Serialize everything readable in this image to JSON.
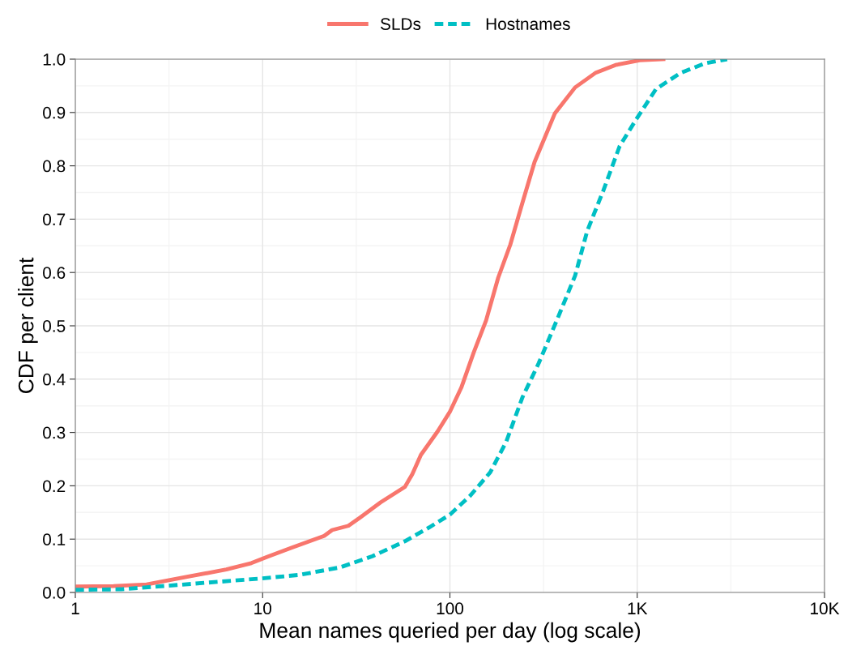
{
  "chart_data": {
    "type": "line",
    "xlabel": "Mean names queried per day (log scale)",
    "ylabel": "CDF per client",
    "log": "x",
    "grid": true,
    "legend": "top",
    "xlim": [
      1,
      10000
    ],
    "xticks": [
      1,
      10,
      100,
      {
        "value": 1000,
        "label": "1K"
      },
      {
        "value": 10000,
        "label": "10K"
      }
    ],
    "ylim": [
      0,
      1
    ],
    "yticks": [
      {
        "value": 0,
        "label": "0.0"
      },
      {
        "value": 0.1,
        "label": "0.1"
      },
      {
        "value": 0.2,
        "label": "0.2"
      },
      {
        "value": 0.3,
        "label": "0.3"
      },
      {
        "value": 0.4,
        "label": "0.4"
      },
      {
        "value": 0.5,
        "label": "0.5"
      },
      {
        "value": 0.6,
        "label": "0.6"
      },
      {
        "value": 0.7,
        "label": "0.7"
      },
      {
        "value": 0.8,
        "label": "0.8"
      },
      {
        "value": 0.9,
        "label": "0.9"
      },
      {
        "value": 1,
        "label": "1.0"
      }
    ],
    "series": [
      {
        "name": "SLDs",
        "color": "#f8766d",
        "line_style": "solid",
        "x": [
          1,
          1.6,
          2.4,
          3.9,
          6.4,
          8.7,
          10.6,
          14.3,
          21.3,
          23.5,
          28.7,
          33.3,
          42.7,
          57.5,
          63,
          70,
          86,
          100,
          115,
          134,
          156,
          181,
          210,
          244,
          283,
          363,
          466,
          597,
          766,
          1030,
          1380
        ],
        "values": [
          0.011,
          0.012,
          0.015,
          0.029,
          0.043,
          0.055,
          0.067,
          0.084,
          0.106,
          0.117,
          0.125,
          0.141,
          0.169,
          0.198,
          0.222,
          0.258,
          0.302,
          0.339,
          0.384,
          0.45,
          0.51,
          0.59,
          0.652,
          0.731,
          0.807,
          0.898,
          0.947,
          0.974,
          0.989,
          0.998,
          1.0
        ]
      },
      {
        "name": "Hostnames",
        "color": "#00bfc4",
        "line_style": "dashed",
        "x": [
          1,
          1.76,
          3.5,
          5.8,
          9.6,
          15.8,
          25.9,
          38.6,
          57.5,
          77.6,
          100,
          128,
          164,
          200,
          244,
          298,
          380,
          466,
          541,
          660,
          806,
          983,
          1260,
          1700,
          2290,
          3020
        ],
        "values": [
          0.005,
          0.006,
          0.014,
          0.02,
          0.026,
          0.033,
          0.047,
          0.068,
          0.096,
          0.122,
          0.146,
          0.181,
          0.225,
          0.283,
          0.366,
          0.43,
          0.518,
          0.594,
          0.678,
          0.754,
          0.837,
          0.886,
          0.944,
          0.974,
          0.992,
          1.0
        ]
      }
    ]
  }
}
